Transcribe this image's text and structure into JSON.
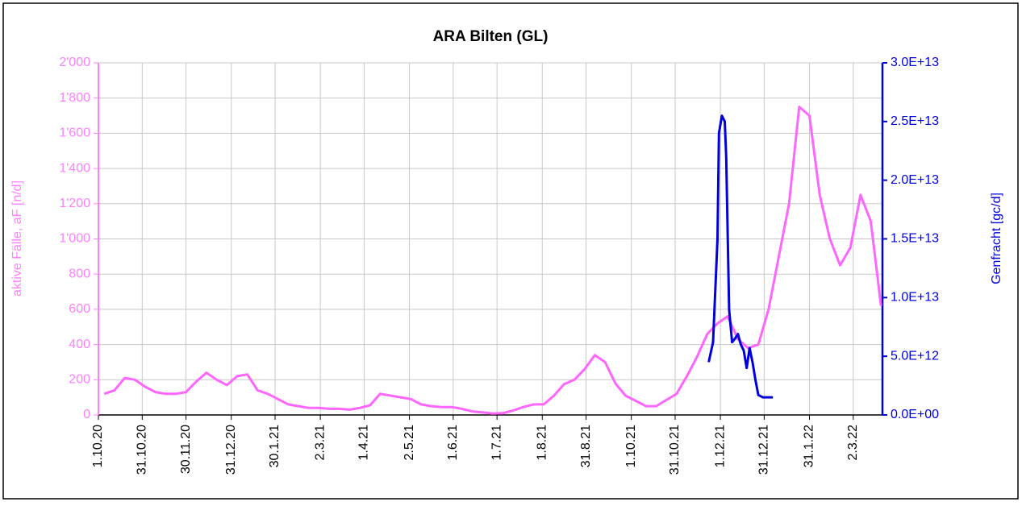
{
  "chart_data": {
    "type": "line",
    "title": "ARA Bilten (GL)",
    "ylabel": "aktive Fälle, aF [n/d]",
    "y2label": "Genfracht [gc/d]",
    "xlim": [
      "2020-10-01",
      "2022-03-22"
    ],
    "xticks": [
      {
        "value": "2020-10-01",
        "label": "1.10.20"
      },
      {
        "value": "2020-10-31",
        "label": "31.10.20"
      },
      {
        "value": "2020-11-30",
        "label": "30.11.20"
      },
      {
        "value": "2020-12-31",
        "label": "31.12.20"
      },
      {
        "value": "2021-01-30",
        "label": "30.1.21"
      },
      {
        "value": "2021-03-02",
        "label": "2.3.21"
      },
      {
        "value": "2021-04-01",
        "label": "1.4.21"
      },
      {
        "value": "2021-05-02",
        "label": "2.5.21"
      },
      {
        "value": "2021-06-01",
        "label": "1.6.21"
      },
      {
        "value": "2021-07-01",
        "label": "1.7.21"
      },
      {
        "value": "2021-08-01",
        "label": "1.8.21"
      },
      {
        "value": "2021-08-31",
        "label": "31.8.21"
      },
      {
        "value": "2021-10-01",
        "label": "1.10.21"
      },
      {
        "value": "2021-10-31",
        "label": "31.10.21"
      },
      {
        "value": "2021-12-01",
        "label": "1.12.21"
      },
      {
        "value": "2021-12-31",
        "label": "31.12.21"
      },
      {
        "value": "2022-01-31",
        "label": "31.1.22"
      },
      {
        "value": "2022-03-02",
        "label": "2.3.22"
      }
    ],
    "ylim": [
      0,
      2000
    ],
    "yticks": [
      0,
      200,
      400,
      600,
      800,
      {
        "value": 1000,
        "label": "1'000"
      },
      {
        "value": 1200,
        "label": "1'200"
      },
      {
        "value": 1400,
        "label": "1'400"
      },
      {
        "value": 1600,
        "label": "1'600"
      },
      {
        "value": 1800,
        "label": "1'800"
      },
      {
        "value": 2000,
        "label": "2'000"
      }
    ],
    "y2lim": [
      0,
      30000000000000
    ],
    "y2ticks": [
      {
        "value": 0,
        "label": "0.0E+00"
      },
      {
        "value": 5000000000000,
        "label": "5.0E+12"
      },
      {
        "value": 10000000000000,
        "label": "1.0E+13"
      },
      {
        "value": 15000000000000,
        "label": "1.5E+13"
      },
      {
        "value": 20000000000000,
        "label": "2.0E+13"
      },
      {
        "value": 25000000000000,
        "label": "2.5E+13"
      },
      {
        "value": 30000000000000,
        "label": "3.0E+13"
      }
    ],
    "grid": true,
    "series": [
      {
        "name": "aktive Fälle",
        "color": "#ff66ff",
        "axis": "y",
        "x": [
          "2020-10-05",
          "2020-10-12",
          "2020-10-19",
          "2020-10-26",
          "2020-11-02",
          "2020-11-09",
          "2020-11-16",
          "2020-11-23",
          "2020-11-30",
          "2020-12-07",
          "2020-12-14",
          "2020-12-21",
          "2020-12-28",
          "2021-01-04",
          "2021-01-11",
          "2021-01-18",
          "2021-01-25",
          "2021-02-01",
          "2021-02-08",
          "2021-02-15",
          "2021-02-22",
          "2021-03-01",
          "2021-03-08",
          "2021-03-15",
          "2021-03-22",
          "2021-03-29",
          "2021-04-05",
          "2021-04-12",
          "2021-04-19",
          "2021-04-26",
          "2021-05-03",
          "2021-05-10",
          "2021-05-17",
          "2021-05-24",
          "2021-05-31",
          "2021-06-07",
          "2021-06-14",
          "2021-06-21",
          "2021-06-28",
          "2021-07-05",
          "2021-07-12",
          "2021-07-19",
          "2021-07-26",
          "2021-08-02",
          "2021-08-09",
          "2021-08-16",
          "2021-08-23",
          "2021-08-30",
          "2021-09-06",
          "2021-09-13",
          "2021-09-20",
          "2021-09-27",
          "2021-10-04",
          "2021-10-11",
          "2021-10-18",
          "2021-10-25",
          "2021-11-01",
          "2021-11-08",
          "2021-11-15",
          "2021-11-22",
          "2021-11-29",
          "2021-12-06",
          "2021-12-13",
          "2021-12-20",
          "2021-12-27",
          "2022-01-03",
          "2022-01-10",
          "2022-01-17",
          "2022-01-24",
          "2022-01-31",
          "2022-02-07",
          "2022-02-14",
          "2022-02-21",
          "2022-02-28",
          "2022-03-07",
          "2022-03-14",
          "2022-03-21"
        ],
        "values": [
          120,
          140,
          210,
          200,
          160,
          130,
          120,
          120,
          130,
          190,
          240,
          200,
          170,
          220,
          230,
          140,
          120,
          90,
          60,
          50,
          40,
          40,
          35,
          35,
          30,
          40,
          55,
          120,
          110,
          100,
          90,
          60,
          50,
          45,
          45,
          35,
          20,
          15,
          8,
          10,
          25,
          45,
          60,
          60,
          110,
          175,
          200,
          260,
          340,
          300,
          180,
          110,
          80,
          50,
          50,
          85,
          120,
          220,
          330,
          460,
          520,
          560,
          430,
          380,
          400,
          600,
          900,
          1200,
          1750,
          1700,
          1250,
          1000,
          850,
          950,
          1250,
          1100,
          620
        ]
      },
      {
        "name": "Genfracht",
        "color": "#0000dd",
        "axis": "y2",
        "x": [
          "2021-11-23",
          "2021-11-26",
          "2021-11-29",
          "2021-11-30",
          "2021-12-02",
          "2021-12-04",
          "2021-12-05",
          "2021-12-07",
          "2021-12-09",
          "2021-12-11",
          "2021-12-13",
          "2021-12-15",
          "2021-12-17",
          "2021-12-19",
          "2021-12-21",
          "2021-12-23",
          "2021-12-25",
          "2021-12-27",
          "2021-12-30",
          "2022-01-03",
          "2022-01-06"
        ],
        "values": [
          4500000000000,
          6200000000000,
          15000000000000,
          24000000000000,
          25500000000000,
          25000000000000,
          22000000000000,
          9000000000000,
          6200000000000,
          6500000000000,
          6900000000000,
          6000000000000,
          5500000000000,
          4000000000000,
          5700000000000,
          4500000000000,
          3000000000000,
          1700000000000,
          1500000000000,
          1500000000000,
          1500000000000
        ]
      }
    ]
  }
}
